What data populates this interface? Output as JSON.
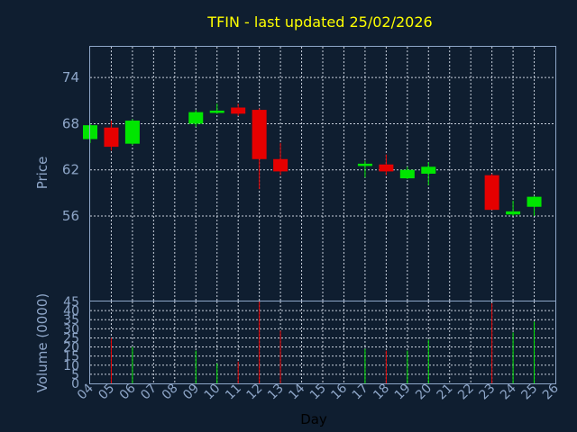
{
  "chart_data": {
    "type": "candlestick",
    "title": "TFIN - last updated 25/02/2026",
    "price_ylabel": "Price",
    "volume_ylabel": "Volume (0000)",
    "xlabel": "Day",
    "x_ticks": [
      "04",
      "05",
      "06",
      "07",
      "08",
      "09",
      "10",
      "11",
      "12",
      "13",
      "14",
      "15",
      "16",
      "17",
      "18",
      "19",
      "20",
      "21",
      "22",
      "23",
      "24",
      "25",
      "26"
    ],
    "price_ticks": [
      56,
      62,
      68,
      74
    ],
    "price_ylim": [
      45,
      78
    ],
    "volume_ticks": [
      0,
      5,
      10,
      15,
      20,
      25,
      30,
      35,
      40,
      45
    ],
    "volume_ylim": [
      0,
      45
    ],
    "grid": true,
    "colors": {
      "up": "#00e600",
      "down": "#e60000",
      "title": "#ffff00",
      "axis": "#8ea6c8",
      "background": "#0f1e30"
    },
    "candles": [
      {
        "day": 4,
        "open": 66.0,
        "high": 68.0,
        "low": 65.5,
        "close": 67.8,
        "volume": 0
      },
      {
        "day": 5,
        "open": 67.5,
        "high": 68.4,
        "low": 64.5,
        "close": 65.0,
        "volume": 25
      },
      {
        "day": 6,
        "open": 65.4,
        "high": 68.6,
        "low": 65.2,
        "close": 68.4,
        "volume": 20
      },
      {
        "day": 9,
        "open": 68.0,
        "high": 69.8,
        "low": 67.6,
        "close": 69.5,
        "volume": 18
      },
      {
        "day": 10,
        "open": 69.4,
        "high": 70.6,
        "low": 69.3,
        "close": 69.7,
        "volume": 11
      },
      {
        "day": 11,
        "open": 70.1,
        "high": 70.6,
        "low": 69.0,
        "close": 69.3,
        "volume": 12
      },
      {
        "day": 12,
        "open": 69.8,
        "high": 70.0,
        "low": 59.5,
        "close": 63.4,
        "volume": 45
      },
      {
        "day": 13,
        "open": 63.4,
        "high": 65.5,
        "low": 61.3,
        "close": 61.8,
        "volume": 29
      },
      {
        "day": 17,
        "open": 62.5,
        "high": 63.2,
        "low": 61.0,
        "close": 62.8,
        "volume": 19
      },
      {
        "day": 18,
        "open": 62.7,
        "high": 64.0,
        "low": 61.3,
        "close": 61.8,
        "volume": 18
      },
      {
        "day": 19,
        "open": 60.9,
        "high": 62.4,
        "low": 60.8,
        "close": 62.0,
        "volume": 18
      },
      {
        "day": 20,
        "open": 61.5,
        "high": 63.0,
        "low": 60.0,
        "close": 62.4,
        "volume": 24
      },
      {
        "day": 23,
        "open": 61.3,
        "high": 61.5,
        "low": 56.8,
        "close": 56.8,
        "volume": 44
      },
      {
        "day": 24,
        "open": 56.2,
        "high": 58.0,
        "low": 56.0,
        "close": 56.6,
        "volume": 28
      },
      {
        "day": 25,
        "open": 57.2,
        "high": 58.6,
        "low": 56.0,
        "close": 58.5,
        "volume": 34
      }
    ]
  }
}
